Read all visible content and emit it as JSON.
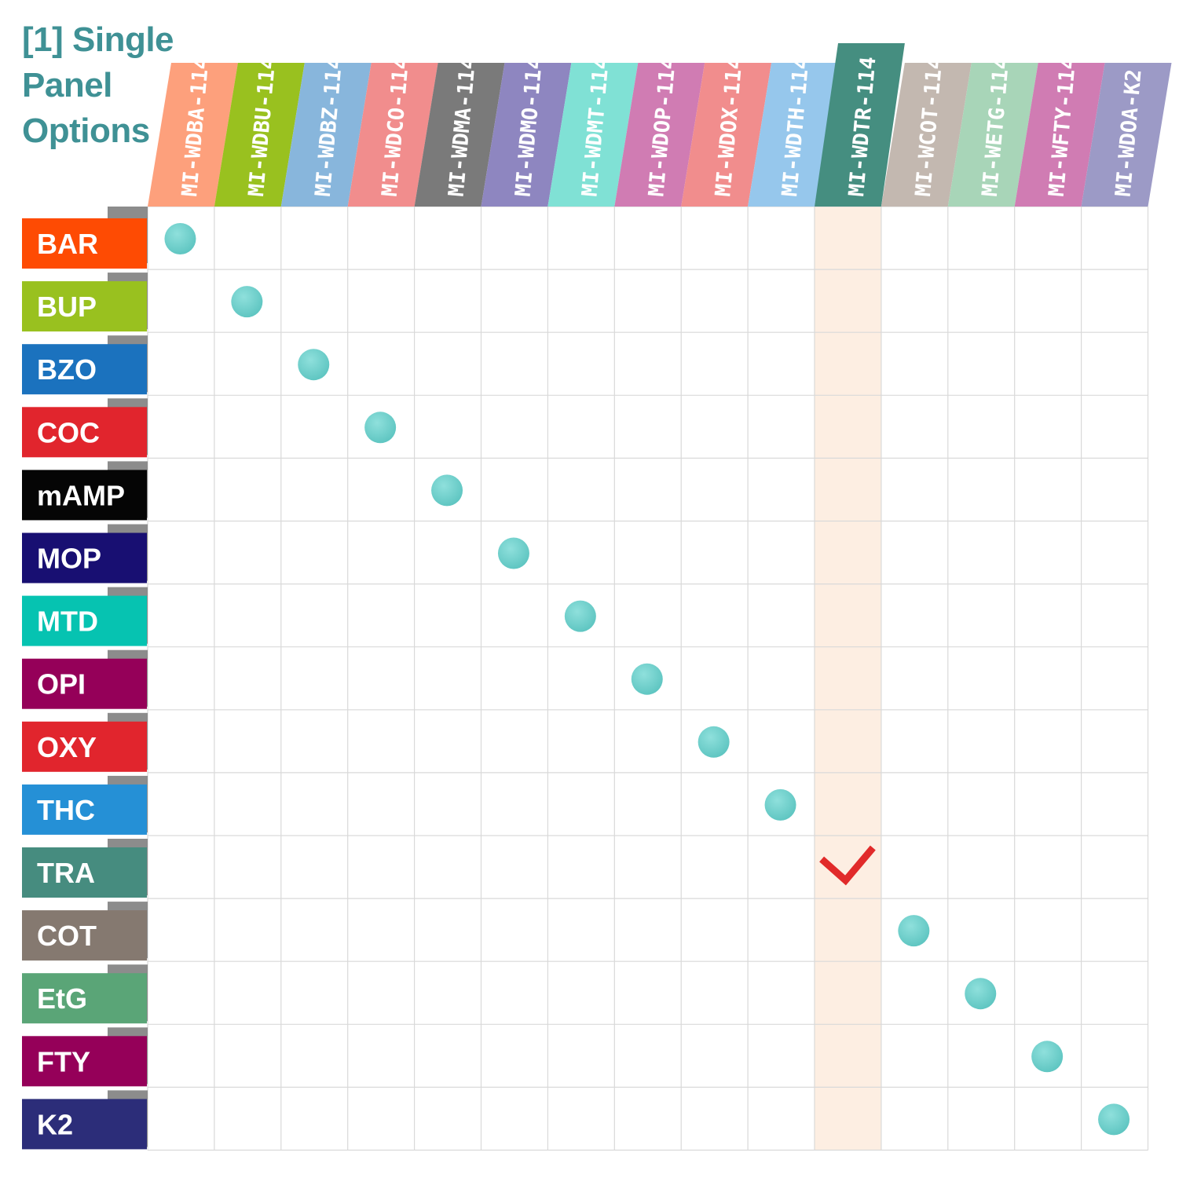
{
  "title": {
    "lines": [
      "[1] Single",
      "Panel",
      "Options"
    ],
    "color": "#3f9195"
  },
  "chart_data": {
    "type": "table",
    "columns": [
      {
        "label": "MI-WDBA-114",
        "color": "#fda07c"
      },
      {
        "label": "MI-WDBU-114",
        "color": "#99c11f"
      },
      {
        "label": "MI-WDBZ-114",
        "color": "#88b6dc"
      },
      {
        "label": "MI-WDCO-114",
        "color": "#f18d8d"
      },
      {
        "label": "MI-WDMA-114",
        "color": "#7a7a7a"
      },
      {
        "label": "MI-WDMO-114",
        "color": "#8e86c0"
      },
      {
        "label": "MI-WDMT-114",
        "color": "#80e1d5"
      },
      {
        "label": "MI-WDOP-114",
        "color": "#d07cb3"
      },
      {
        "label": "MI-WDOX-114",
        "color": "#f18d8d"
      },
      {
        "label": "MI-WDTH-114",
        "color": "#96c7ec"
      },
      {
        "label": "MI-WDTR-114",
        "color": "#458e80",
        "highlighted": true
      },
      {
        "label": "MI-WCOT-114",
        "color": "#c3b8b0"
      },
      {
        "label": "MI-WETG-114",
        "color": "#a8d5b8"
      },
      {
        "label": "MI-WFTY-114",
        "color": "#d07cb3"
      },
      {
        "label": "MI-WDOA-K2",
        "color": "#9c9ac6"
      }
    ],
    "rows": [
      {
        "label": "BAR",
        "color": "#fe4b03"
      },
      {
        "label": "BUP",
        "color": "#99c11f"
      },
      {
        "label": "BZO",
        "color": "#1b72be"
      },
      {
        "label": "COC",
        "color": "#e1252d"
      },
      {
        "label": "mAMP",
        "color": "#050505"
      },
      {
        "label": "MOP",
        "color": "#180f72"
      },
      {
        "label": "MTD",
        "color": "#06c3b1"
      },
      {
        "label": "OPI",
        "color": "#950059"
      },
      {
        "label": "OXY",
        "color": "#e1252d"
      },
      {
        "label": "THC",
        "color": "#2590d6"
      },
      {
        "label": "TRA",
        "color": "#468c7f"
      },
      {
        "label": "COT",
        "color": "#857970"
      },
      {
        "label": "EtG",
        "color": "#5aa577"
      },
      {
        "label": "FTY",
        "color": "#950059"
      },
      {
        "label": "K2",
        "color": "#2c2d79"
      }
    ],
    "marks": [
      {
        "row": 0,
        "col": 0,
        "kind": "dot"
      },
      {
        "row": 1,
        "col": 1,
        "kind": "dot"
      },
      {
        "row": 2,
        "col": 2,
        "kind": "dot"
      },
      {
        "row": 3,
        "col": 3,
        "kind": "dot"
      },
      {
        "row": 4,
        "col": 4,
        "kind": "dot"
      },
      {
        "row": 5,
        "col": 5,
        "kind": "dot"
      },
      {
        "row": 6,
        "col": 6,
        "kind": "dot"
      },
      {
        "row": 7,
        "col": 7,
        "kind": "dot"
      },
      {
        "row": 8,
        "col": 8,
        "kind": "dot"
      },
      {
        "row": 9,
        "col": 9,
        "kind": "dot"
      },
      {
        "row": 10,
        "col": 10,
        "kind": "check"
      },
      {
        "row": 11,
        "col": 11,
        "kind": "dot"
      },
      {
        "row": 12,
        "col": 12,
        "kind": "dot"
      },
      {
        "row": 13,
        "col": 13,
        "kind": "dot"
      },
      {
        "row": 14,
        "col": 14,
        "kind": "dot"
      }
    ],
    "dot_color": "#6fcfcb",
    "check_color": "#e12a2a",
    "highlight_color": "#fdeee2",
    "grid_color": "#d9d9d9",
    "row_tab_color": "#8c8c8c"
  }
}
